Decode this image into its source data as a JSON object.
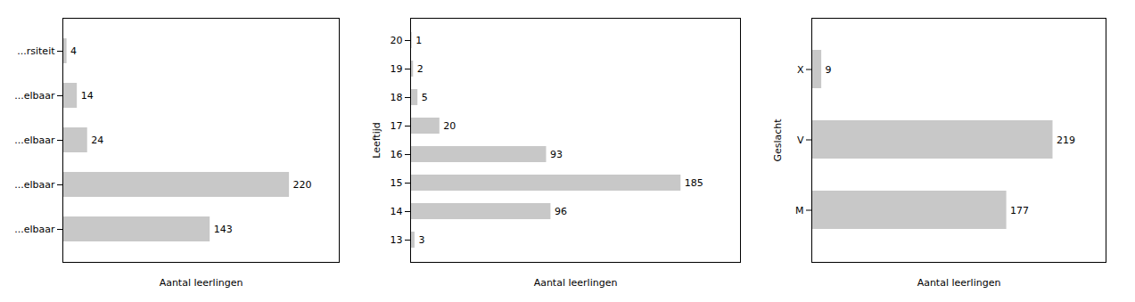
{
  "chart_data": [
    {
      "type": "bar",
      "orientation": "horizontal",
      "xlabel": "Aantal leerlingen",
      "categories": [
        "...rsiteit",
        "...elbaar",
        "...elbaar",
        "...elbaar",
        "...elbaar"
      ],
      "values": [
        4,
        14,
        24,
        220,
        143
      ],
      "color": "#c8c8c8",
      "xlim": [
        0,
        268.4
      ],
      "data_labels": true,
      "tick_labels": "y"
    },
    {
      "type": "bar",
      "orientation": "horizontal",
      "ylabel": "Leeftijd",
      "xlabel": "Aantal leerlingen",
      "categories": [
        "20",
        "19",
        "18",
        "17",
        "16",
        "15",
        "14",
        "13"
      ],
      "values": [
        1,
        2,
        5,
        20,
        93,
        185,
        96,
        3
      ],
      "color": "#c8c8c8",
      "xlim": [
        0,
        225.7
      ],
      "data_labels": true,
      "tick_labels": "y"
    },
    {
      "type": "bar",
      "orientation": "horizontal",
      "ylabel": "Geslacht",
      "xlabel": "Aantal leerlingen",
      "categories": [
        "X",
        "V",
        "M"
      ],
      "values": [
        9,
        219,
        177
      ],
      "color": "#c8c8c8",
      "xlim": [
        0,
        267.18
      ],
      "data_labels": true,
      "tick_labels": "y"
    }
  ]
}
